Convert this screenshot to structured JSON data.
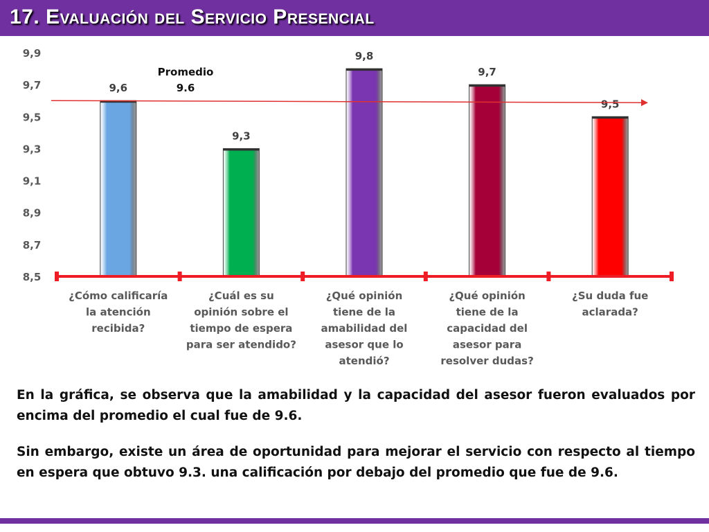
{
  "header": {
    "title": "17. Evaluación del Servicio Presencial"
  },
  "colors": {
    "header_bg": "#7030a0",
    "axis_line": "#ee1c25",
    "average_line": "#e03030",
    "footer_bar": "#7030a0"
  },
  "chart_data": {
    "type": "bar",
    "categories": [
      [
        "¿Cómo calificaría",
        "la atención",
        "recibida?"
      ],
      [
        "¿Cuál es su",
        "opinión sobre el",
        "tiempo de espera",
        "para ser atendido?"
      ],
      [
        "¿Qué opinión",
        "tiene de la",
        "amabilidad del",
        "asesor que lo",
        "atendió?"
      ],
      [
        "¿Qué opinión",
        "tiene de la",
        "capacidad del",
        "asesor para",
        "resolver dudas?"
      ],
      [
        "¿Su duda fue",
        "aclarada?"
      ]
    ],
    "values": [
      9.6,
      9.3,
      9.8,
      9.7,
      9.5
    ],
    "value_labels": [
      "9,6",
      "9,3",
      "9,8",
      "9,7",
      "9,5"
    ],
    "bar_colors": [
      "#6aa6e2",
      "#00b050",
      "#7a35b0",
      "#a50038",
      "#ff0000"
    ],
    "ylim": [
      8.5,
      9.9
    ],
    "yticks": [
      8.5,
      8.7,
      8.9,
      9.1,
      9.3,
      9.5,
      9.7,
      9.9
    ],
    "ytick_labels": [
      "8,5",
      "8,7",
      "8,9",
      "9,1",
      "9,3",
      "9,5",
      "9,7",
      "9,9"
    ],
    "grid": false,
    "legend": "none",
    "average": {
      "value": 9.6,
      "label_lines": [
        "Promedio",
        "9.6"
      ]
    },
    "title": "",
    "xlabel": "",
    "ylabel": ""
  },
  "summary": {
    "paragraph1": "En la gráfica, se observa que la amabilidad y la capacidad del asesor fueron evaluados por encima del promedio el cual fue de 9.6.",
    "paragraph2": "Sin embargo, existe un área de oportunidad para mejorar el servicio con respecto al tiempo en espera que obtuvo 9.3. una calificación por debajo del promedio que fue de 9.6."
  }
}
